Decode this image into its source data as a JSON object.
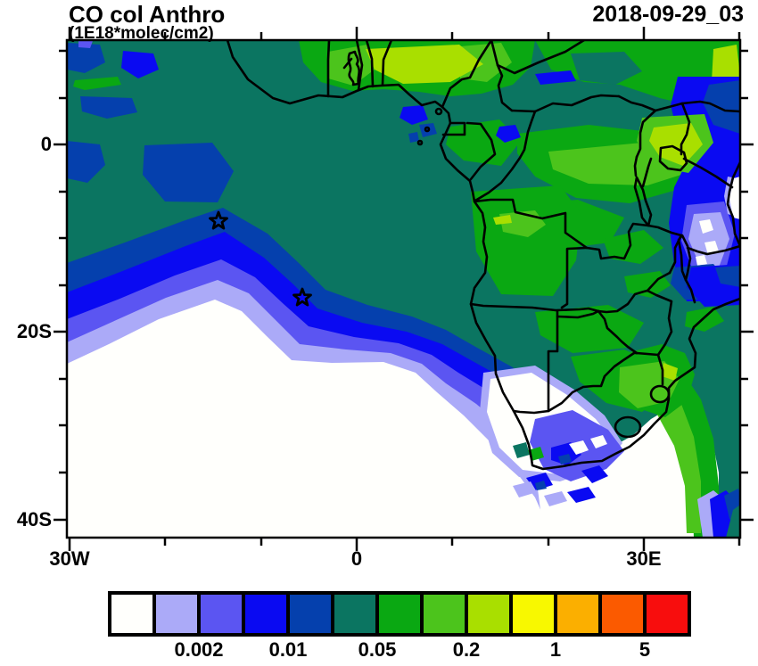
{
  "header": {
    "title": "CO col Anthro",
    "subtitle": "(1E18*molec/cm2)",
    "date": "2018-09-29_03"
  },
  "axes": {
    "x": {
      "tick_labels": [
        "30W",
        "0",
        "30E"
      ]
    },
    "y": {
      "tick_labels": [
        "0",
        "20S",
        "40S"
      ]
    }
  },
  "colorbar": {
    "labels": [
      "0.002",
      "0.01",
      "0.05",
      "0.2",
      "1",
      "5"
    ],
    "colors": [
      "#fffffc",
      "#abaaf8",
      "#5b55f2",
      "#0a0af2",
      "#0540ad",
      "#0b7561",
      "#0aa812",
      "#4cc41c",
      "#a9df00",
      "#f8f800",
      "#fbaf00",
      "#fb5a00",
      "#f80d0d"
    ]
  },
  "chart_data": {
    "type": "heatmap",
    "title": "CO col Anthro",
    "units": "1E18*molec/cm2",
    "time_label": "2018-09-29_03",
    "description": "Filled-contour map of anthropogenic CO column over Africa and the southeast Atlantic, with country borders overlaid",
    "x_axis": {
      "labeled_ticks": [
        "30W",
        "0",
        "30E"
      ],
      "approx_range_lon_deg": [
        -30.3,
        39.6
      ],
      "minor_tick_step_deg": 10
    },
    "y_axis": {
      "labeled_ticks": [
        "0",
        "20S",
        "40S"
      ],
      "approx_range_lat_deg": [
        -41.9,
        11.1
      ],
      "minor_tick_step_deg": 5
    },
    "colorbar_tick_labels": [
      "0.002",
      "0.01",
      "0.05",
      "0.2",
      "1",
      "5"
    ],
    "palette_hex": [
      "#fffffc",
      "#abaaf8",
      "#5b55f2",
      "#0a0af2",
      "#0540ad",
      "#0b7561",
      "#0aa812",
      "#4cc41c",
      "#a9df00",
      "#f8f800",
      "#fbaf00",
      "#fb5a00",
      "#f80d0d"
    ],
    "markers": [
      {
        "shape": "star",
        "approx_lon_deg": -14.4,
        "approx_lat_deg": -8.2
      },
      {
        "shape": "star",
        "approx_lon_deg": -5.7,
        "approx_lat_deg": -16.3
      }
    ],
    "regions_qualitative": [
      "South-east Atlantic and south-west African interior: lowest values (white, below 0.002) ringed by banded contours (lavender, violet, blue, dark blue) increasing toward the Gulf of Guinea",
      "Gulf of Guinea ocean and most of central African land: mid-low teal band (~0.02-0.05)",
      "West African coastal strip (Ghana-Nigeria), Congo basin, Uganda/Lake Victoria and eastern South Africa Highveld: elevated greens to yellow-green (~0.1-0.5)",
      "Kenya/Tanzania and east coast: low blue/violet/white mottled zone",
      "Two star markers plotted over the Atlantic near 14W 8S and 6W 16S"
    ]
  }
}
